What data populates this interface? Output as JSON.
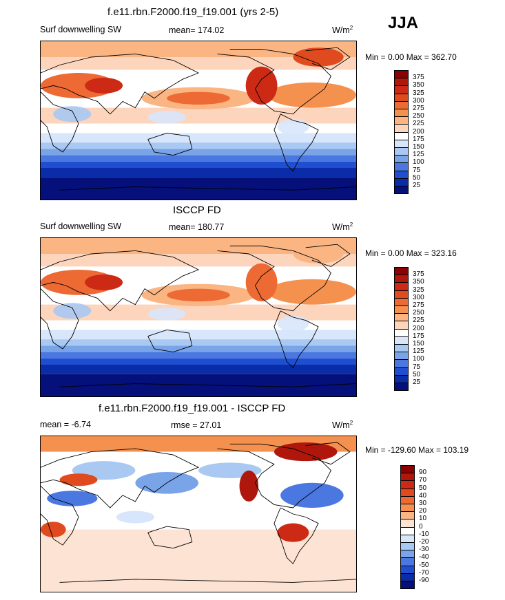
{
  "page": {
    "season": "JJA",
    "units_base": "W/m",
    "units_exp": "2"
  },
  "chart_data": [
    {
      "type": "heatmap",
      "title": "f.e11.rbn.F2000.f19_f19.001 (yrs 2-5)",
      "left_label": "Surf downwelling SW",
      "center_label": "mean= 174.02",
      "stats": {
        "min": 0.0,
        "max": 362.7
      },
      "minmax_text": "Min =   0.00 Max = 362.70",
      "colorbar": {
        "levels": [
          "375",
          "350",
          "325",
          "300",
          "275",
          "250",
          "225",
          "200",
          "175",
          "150",
          "125",
          "100",
          "75",
          "50",
          "25"
        ],
        "colors": [
          "#8b0000",
          "#b0170c",
          "#cc2a14",
          "#e04a1f",
          "#ee6a34",
          "#f5914f",
          "#fab583",
          "#fdd5bd",
          "#ffffff",
          "#d8e6fb",
          "#a9c8f2",
          "#7aa4e8",
          "#4a78e0",
          "#1f4fd0",
          "#0b2ca8",
          "#05107a"
        ]
      }
    },
    {
      "type": "heatmap",
      "title": "ISCCP FD",
      "left_label": "Surf downwelling SW",
      "center_label": "mean= 180.77",
      "stats": {
        "min": 0.0,
        "max": 323.16
      },
      "minmax_text": "Min =   0.00 Max = 323.16",
      "colorbar": {
        "levels": [
          "375",
          "350",
          "325",
          "300",
          "275",
          "250",
          "225",
          "200",
          "175",
          "150",
          "125",
          "100",
          "75",
          "50",
          "25"
        ],
        "colors": [
          "#8b0000",
          "#b0170c",
          "#cc2a14",
          "#e04a1f",
          "#ee6a34",
          "#f5914f",
          "#fab583",
          "#fdd5bd",
          "#ffffff",
          "#d8e6fb",
          "#a9c8f2",
          "#7aa4e8",
          "#4a78e0",
          "#1f4fd0",
          "#0b2ca8",
          "#05107a"
        ]
      }
    },
    {
      "type": "heatmap",
      "title": "f.e11.rbn.F2000.f19_f19.001 - ISCCP FD",
      "left_label": "mean =  -6.74",
      "center_label": "rmse =  27.01",
      "stats": {
        "min": -129.6,
        "max": 103.19
      },
      "minmax_text": "Min = -129.60 Max = 103.19",
      "colorbar": {
        "levels": [
          "90",
          "70",
          "50",
          "40",
          "30",
          "20",
          "10",
          "0",
          "-10",
          "-20",
          "-30",
          "-40",
          "-50",
          "-70",
          "-90"
        ],
        "colors": [
          "#8b0000",
          "#b0170c",
          "#cc2a14",
          "#e04a1f",
          "#ee6a34",
          "#f5914f",
          "#fab583",
          "#fde3d3",
          "#ffffff",
          "#d8e6fb",
          "#a9c8f2",
          "#7aa4e8",
          "#4a78e0",
          "#1f4fd0",
          "#0b2ca8",
          "#05107a"
        ]
      }
    }
  ]
}
